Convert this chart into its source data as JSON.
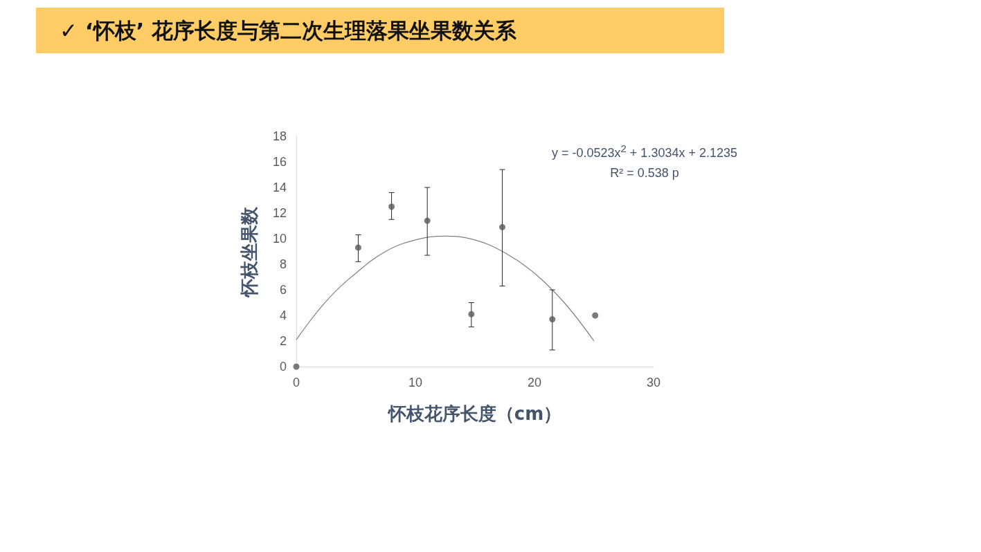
{
  "chart_data": {
    "type": "scatter",
    "title": "✓ ‘怀枝’ 花序长度与第二次生理落果坐果数关系",
    "xlabel": "怀枝花序长度（cm）",
    "ylabel": "怀枝坐果数",
    "series": [
      {
        "color": "#595959",
        "x": [
          0,
          5.2,
          8.0,
          11.0,
          14.7,
          17.3,
          21.5,
          25.1
        ],
        "values": [
          0,
          9.3,
          12.5,
          11.4,
          4.1,
          10.9,
          3.7,
          4.0
        ],
        "errors": [
          null,
          [
            8.2,
            10.3
          ],
          [
            11.5,
            13.6
          ],
          [
            8.7,
            14.0
          ],
          [
            3.1,
            5.0
          ],
          [
            6.3,
            15.4
          ],
          [
            1.3,
            6.0
          ],
          null
        ],
        "marker": "circle"
      },
      {
        "type": "line",
        "color": "#808080",
        "x": [
          0,
          2.5,
          5,
          7.5,
          10,
          12.5,
          15,
          17.5,
          20,
          22.5,
          25
        ],
        "values": [
          2.1,
          5.1,
          7.3,
          9.0,
          9.9,
          10.2,
          9.9,
          8.9,
          7.3,
          5.0,
          2.0
        ],
        "marker": "none",
        "line_style": "solid"
      }
    ],
    "annotations": [
      "y = -0.0523x$^{2}$ + 1.3034x + 2.1235",
      "R² = 0.538  p"
    ],
    "xlim": [
      0,
      30
    ],
    "xticks": [
      0,
      10,
      20,
      30
    ],
    "ylim": [
      0,
      18
    ],
    "yticks": [
      0,
      2,
      4,
      6,
      8,
      10,
      12,
      14,
      16,
      18
    ],
    "grid": false
  }
}
